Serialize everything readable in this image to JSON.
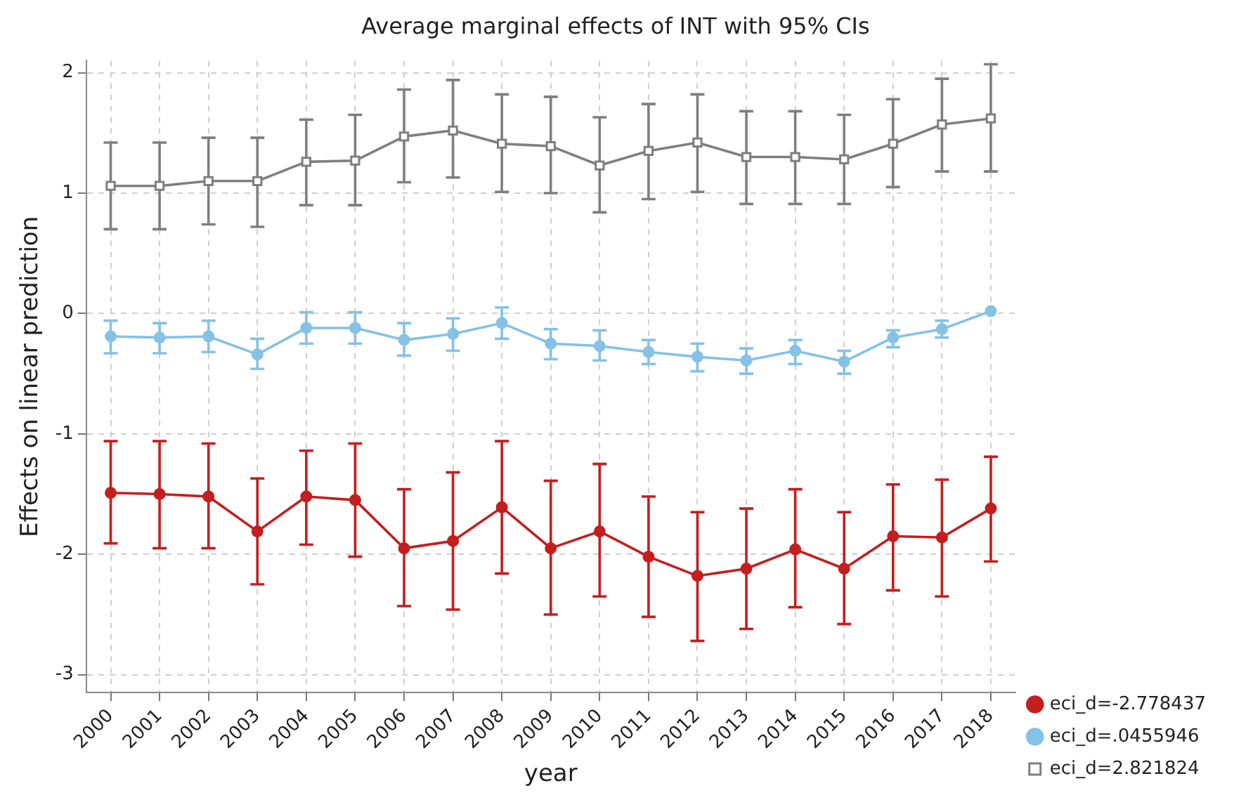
{
  "chart_data": {
    "type": "line",
    "title": "Average marginal effects of INT with 95% CIs",
    "xlabel": "year",
    "ylabel": "Effects on linear prediction",
    "categories": [
      "2000",
      "2001",
      "2002",
      "2003",
      "2004",
      "2005",
      "2006",
      "2007",
      "2008",
      "2009",
      "2010",
      "2011",
      "2012",
      "2013",
      "2014",
      "2015",
      "2016",
      "2017",
      "2018"
    ],
    "ylim": [
      -3.15,
      2.1
    ],
    "yticks": [
      -3,
      -2,
      -1,
      0,
      1,
      2
    ],
    "grid": true,
    "legend": "bottom right",
    "series": [
      {
        "name": "eci_d=-2.778437",
        "color": "#c41e1e",
        "marker": "circle",
        "values": [
          -1.49,
          -1.5,
          -1.52,
          -1.81,
          -1.52,
          -1.55,
          -1.95,
          -1.89,
          -1.61,
          -1.95,
          -1.81,
          -2.02,
          -2.18,
          -2.12,
          -1.96,
          -2.12,
          -1.85,
          -1.86,
          -1.62
        ],
        "errors": [
          [
            -1.91,
            -1.06
          ],
          [
            -1.95,
            -1.06
          ],
          [
            -1.95,
            -1.08
          ],
          [
            -2.25,
            -1.37
          ],
          [
            -1.92,
            -1.14
          ],
          [
            -2.02,
            -1.08
          ],
          [
            -2.43,
            -1.46
          ],
          [
            -2.46,
            -1.32
          ],
          [
            -2.16,
            -1.06
          ],
          [
            -2.5,
            -1.39
          ],
          [
            -2.35,
            -1.25
          ],
          [
            -2.52,
            -1.52
          ],
          [
            -2.72,
            -1.65
          ],
          [
            -2.62,
            -1.62
          ],
          [
            -2.44,
            -1.46
          ],
          [
            -2.58,
            -1.65
          ],
          [
            -2.3,
            -1.42
          ],
          [
            -2.35,
            -1.38
          ],
          [
            -2.06,
            -1.19
          ]
        ]
      },
      {
        "name": "eci_d=.0455946",
        "color": "#86c1e6",
        "marker": "circle",
        "values": [
          -0.19,
          -0.2,
          -0.19,
          -0.34,
          -0.12,
          -0.12,
          -0.22,
          -0.17,
          -0.08,
          -0.25,
          -0.27,
          -0.32,
          -0.36,
          -0.39,
          -0.31,
          -0.4,
          -0.2,
          -0.13,
          0.02
        ],
        "errors": [
          [
            -0.33,
            -0.06
          ],
          [
            -0.33,
            -0.08
          ],
          [
            -0.32,
            -0.06
          ],
          [
            -0.46,
            -0.21
          ],
          [
            -0.25,
            0.01
          ],
          [
            -0.25,
            0.01
          ],
          [
            -0.35,
            -0.08
          ],
          [
            -0.31,
            -0.04
          ],
          [
            -0.21,
            0.05
          ],
          [
            -0.38,
            -0.13
          ],
          [
            -0.39,
            -0.14
          ],
          [
            -0.42,
            -0.22
          ],
          [
            -0.48,
            -0.25
          ],
          [
            -0.5,
            -0.29
          ],
          [
            -0.42,
            -0.22
          ],
          [
            -0.5,
            -0.31
          ],
          [
            -0.28,
            -0.14
          ],
          [
            -0.2,
            -0.06
          ],
          null
        ]
      },
      {
        "name": "eci_d=2.821824",
        "color": "#7f7f7f",
        "marker": "square",
        "values": [
          1.06,
          1.06,
          1.1,
          1.1,
          1.26,
          1.27,
          1.47,
          1.52,
          1.41,
          1.39,
          1.23,
          1.35,
          1.42,
          1.3,
          1.3,
          1.28,
          1.41,
          1.57,
          1.62
        ],
        "errors": [
          [
            0.7,
            1.42
          ],
          [
            0.7,
            1.42
          ],
          [
            0.74,
            1.46
          ],
          [
            0.72,
            1.46
          ],
          [
            0.9,
            1.61
          ],
          [
            0.9,
            1.65
          ],
          [
            1.09,
            1.86
          ],
          [
            1.13,
            1.94
          ],
          [
            1.01,
            1.82
          ],
          [
            1.0,
            1.8
          ],
          [
            0.84,
            1.63
          ],
          [
            0.95,
            1.74
          ],
          [
            1.01,
            1.82
          ],
          [
            0.91,
            1.68
          ],
          [
            0.91,
            1.68
          ],
          [
            0.91,
            1.65
          ],
          [
            1.05,
            1.78
          ],
          [
            1.18,
            1.95
          ],
          [
            1.18,
            2.07
          ]
        ]
      }
    ]
  }
}
